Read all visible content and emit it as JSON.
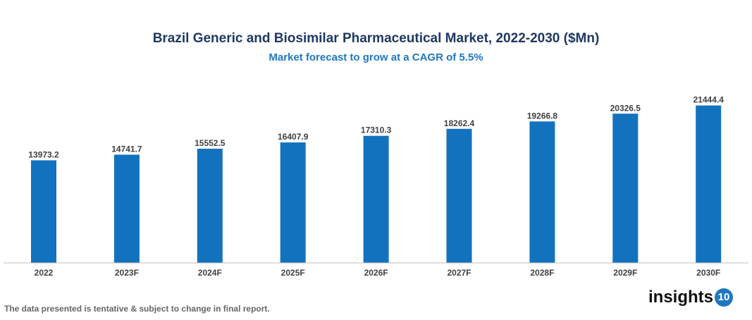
{
  "chart_data": {
    "type": "bar",
    "title": "Brazil Generic and Biosimilar Pharmaceutical Market, 2022-2030 ($Mn)",
    "subtitle": "Market forecast to grow at a CAGR of 5.5%",
    "categories": [
      "2022",
      "2023F",
      "2024F",
      "2025F",
      "2026F",
      "2027F",
      "2028F",
      "2029F",
      "2030F"
    ],
    "values": [
      13973.2,
      14741.7,
      15552.5,
      16407.9,
      17310.3,
      18262.4,
      19266.8,
      20326.5,
      21444.4
    ],
    "labels": [
      "13973.2",
      "14741.7",
      "15552.5",
      "16407.9",
      "17310.3",
      "18262.4",
      "19266.8",
      "20326.5",
      "21444.4"
    ],
    "xlabel": "",
    "ylabel": "",
    "ylim": [
      0,
      24000
    ],
    "grid": false,
    "bar_color": "#1272be"
  },
  "footer": {
    "note": "The data presented is tentative & subject to change in final report.",
    "logo_text": "insights",
    "logo_badge": "10"
  }
}
